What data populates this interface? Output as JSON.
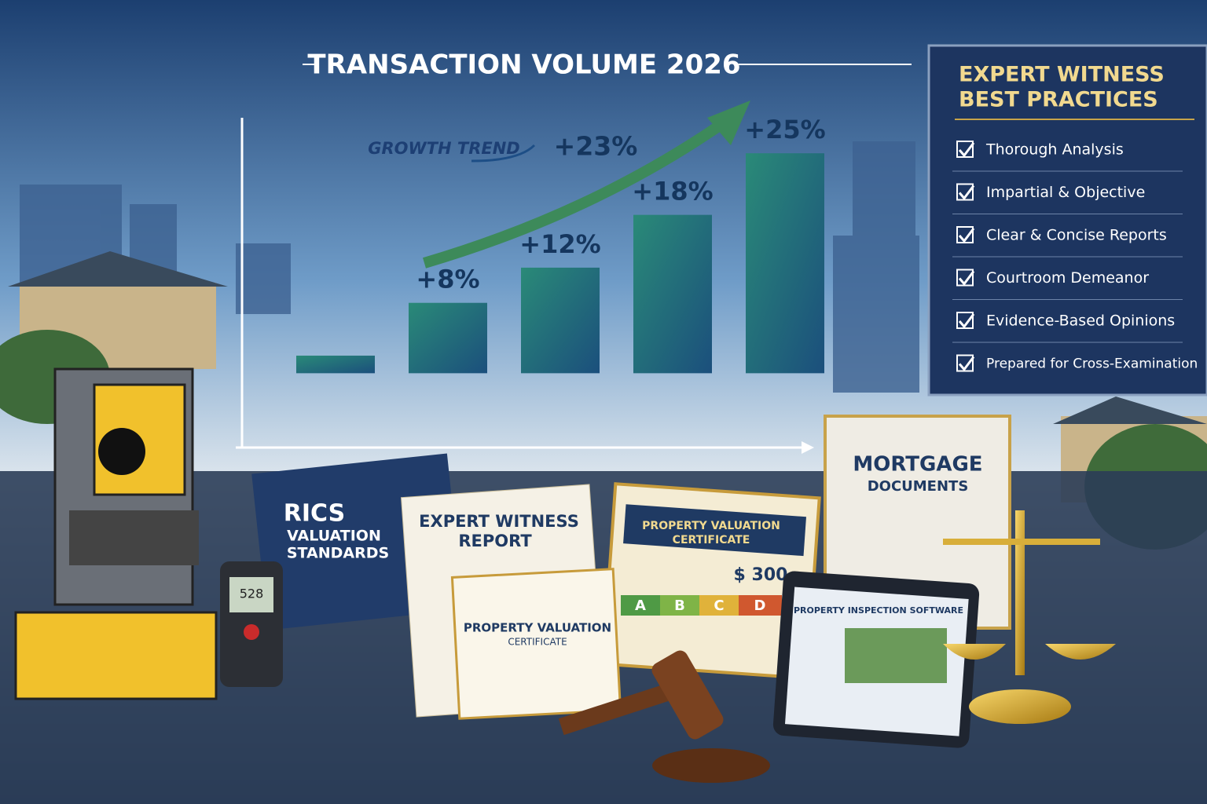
{
  "chart_data": {
    "type": "bar",
    "title": "TRANSACTION VOLUME 2026",
    "categories": [
      null,
      null,
      null,
      null,
      null
    ],
    "values": [
      2,
      8,
      12,
      18,
      25
    ],
    "value_labels": [
      null,
      "+8%",
      "+12%",
      "+18%",
      "+25%"
    ],
    "ylim": [
      -8,
      26
    ],
    "annotations": [
      "GROWTH TREND",
      "+23%"
    ]
  },
  "panel": {
    "title_lines": [
      "EXPERT WITNESS",
      "BEST PRACTICES"
    ],
    "items": [
      "Thorough Analysis",
      "Impartial & Objective",
      "Clear & Concise Reports",
      "Courtroom Demeanor",
      "Evidence-Based Opinions",
      "Prepared for Cross-Examination"
    ]
  },
  "documents": {
    "rics": [
      "RICS",
      "VALUATION",
      "STANDARDS"
    ],
    "report": [
      "EXPERT WITNESS",
      "REPORT"
    ],
    "certificate": [
      "PROPERTY VALUATION",
      "CERTIFICATE"
    ],
    "price": "$ 300",
    "grades": [
      "A",
      "B",
      "C",
      "D"
    ],
    "small_certificate": [
      "PROPERTY VALUATION",
      "CERTIFICATE"
    ],
    "mortgage": [
      "MORTGAGE",
      "DOCUMENTS"
    ],
    "software": "PROPERTY INSPECTION SOFTWARE",
    "meter": "528"
  }
}
